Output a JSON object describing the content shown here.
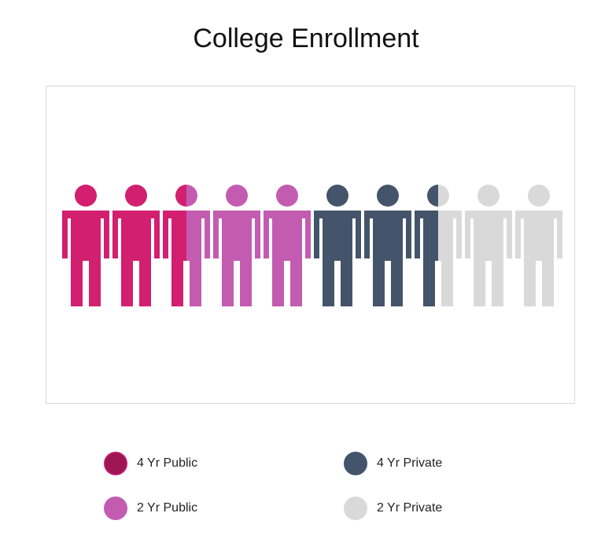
{
  "title": "College Enrollment",
  "chart_data": {
    "type": "pictogram",
    "title": "College Enrollment",
    "total_icons": 10,
    "series": [
      {
        "name": "4 Yr Public",
        "value": 2.5,
        "color": "#d21f6f",
        "legend_color": "#9e1553",
        "legend_border": "#c21866"
      },
      {
        "name": "2 Yr Public",
        "value": 2.5,
        "color": "#c35bb1",
        "legend_color": "#c35bb1",
        "legend_border": "#c35bb1"
      },
      {
        "name": "4 Yr Private",
        "value": 2.5,
        "color": "#44546a",
        "legend_color": "#44546a",
        "legend_border": "#44546a"
      },
      {
        "name": "2 Yr Private",
        "value": 2.5,
        "color": "#d9d9d9",
        "legend_color": "#d9d9d9",
        "legend_border": "#d9d9d9"
      }
    ],
    "legend_position": "bottom"
  }
}
